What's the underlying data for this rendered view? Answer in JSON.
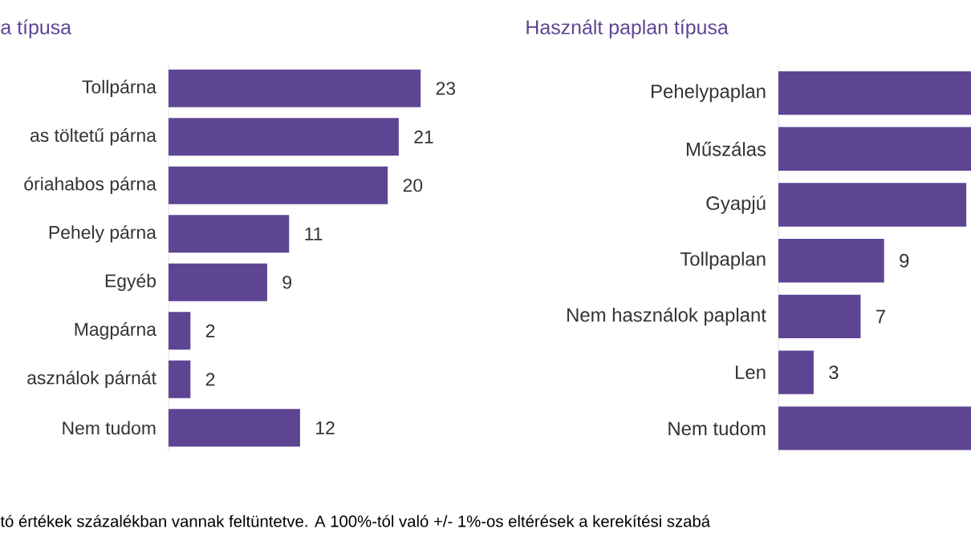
{
  "chart_data": [
    {
      "type": "bar",
      "orientation": "horizontal",
      "title": "a típusa",
      "categories": [
        "Tollpárna",
        "as töltetű párna",
        "óriahabos párna",
        "Pehely párna",
        "Egyéb",
        "Magpárna",
        "asználok párnát",
        "Nem tudom"
      ],
      "values": [
        23,
        21,
        20,
        11,
        9,
        2,
        2,
        12
      ],
      "value_labels": [
        "23",
        "21",
        "20",
        "11",
        "9",
        "2",
        "2",
        "12"
      ],
      "color": "#5e4593",
      "tick_labels": "y",
      "annotations": [
        "tó értékek százalékban vannak feltüntetve. A 100%-tól való +/- 1%-os eltérések a kerekítési szabá"
      ]
    },
    {
      "type": "bar",
      "orientation": "horizontal",
      "title": "Használt paplan típusa",
      "categories": [
        "Pehelypaplan",
        "Műszálas",
        "Gyapjú",
        "Tollpaplan",
        "Nem használok paplant",
        "Len",
        "Nem tudom"
      ],
      "values": [
        16.4,
        16.4,
        16,
        9,
        7,
        3,
        16.4
      ],
      "value_labels": [
        null,
        null,
        null,
        "9",
        "7",
        "3",
        null
      ],
      "color": "#5e4593",
      "xlim": [
        0,
        16.4
      ],
      "tick_labels": "y"
    }
  ]
}
